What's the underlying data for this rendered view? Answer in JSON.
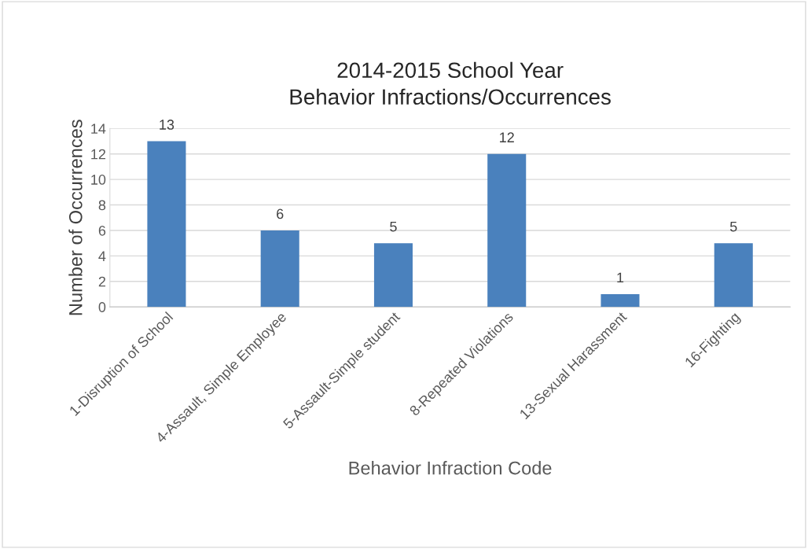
{
  "chart_data": {
    "type": "bar",
    "title": "2014-2015 School Year\nBehavior Infractions/Occurrences",
    "xlabel": "Behavior Infraction Code",
    "ylabel": "Number of Occurrences",
    "categories": [
      "1-Disruption of School",
      "4-Assault, Simple Employee",
      "5-Assault-Simple student",
      "8-Repeated Violations",
      "13-Sexual Harassment",
      "16-Fighting"
    ],
    "values": [
      13,
      6,
      5,
      12,
      1,
      5
    ],
    "color": "#4a81bd",
    "ylim": [
      0,
      14
    ],
    "yticks": [
      0,
      2,
      4,
      6,
      8,
      10,
      12,
      14
    ],
    "grid": "y",
    "data_labels": true
  }
}
